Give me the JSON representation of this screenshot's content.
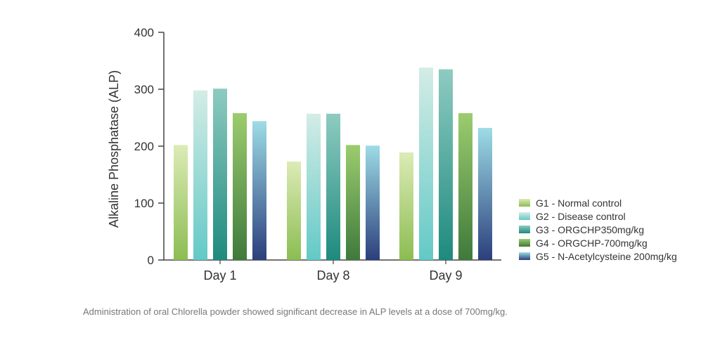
{
  "chart_data": {
    "type": "bar",
    "ylabel": "Alkaline Phosphatase (ALP)",
    "xlabel": "",
    "ylim": [
      0,
      400
    ],
    "yticks": [
      0,
      100,
      200,
      300,
      400
    ],
    "grid": false,
    "legend_position": "right",
    "categories": [
      "Day 1",
      "Day 8",
      "Day 9"
    ],
    "series": [
      {
        "name": "G1 - Normal control",
        "values": [
          202,
          173,
          189
        ],
        "color_top": "#dcebb6",
        "color_bottom": "#8cbd52"
      },
      {
        "name": "G2 - Disease control",
        "values": [
          298,
          257,
          338
        ],
        "color_top": "#d4ece6",
        "color_bottom": "#63c9c6"
      },
      {
        "name": "G3 - ORGCHP350mg/kg",
        "values": [
          301,
          257,
          335
        ],
        "color_top": "#8ecbc1",
        "color_bottom": "#1e8a7e"
      },
      {
        "name": "G4 - ORGCHP-700mg/kg",
        "values": [
          258,
          202,
          258
        ],
        "color_top": "#9ccc6e",
        "color_bottom": "#3f7a3c"
      },
      {
        "name": "G5 - N-Acetylcysteine 200mg/kg",
        "values": [
          244,
          201,
          232
        ],
        "color_top": "#9ddce6",
        "color_bottom": "#2b3f7c"
      }
    ]
  },
  "caption": "Administration of oral Chlorella powder showed significant decrease in ALP levels at a dose of 700mg/kg."
}
